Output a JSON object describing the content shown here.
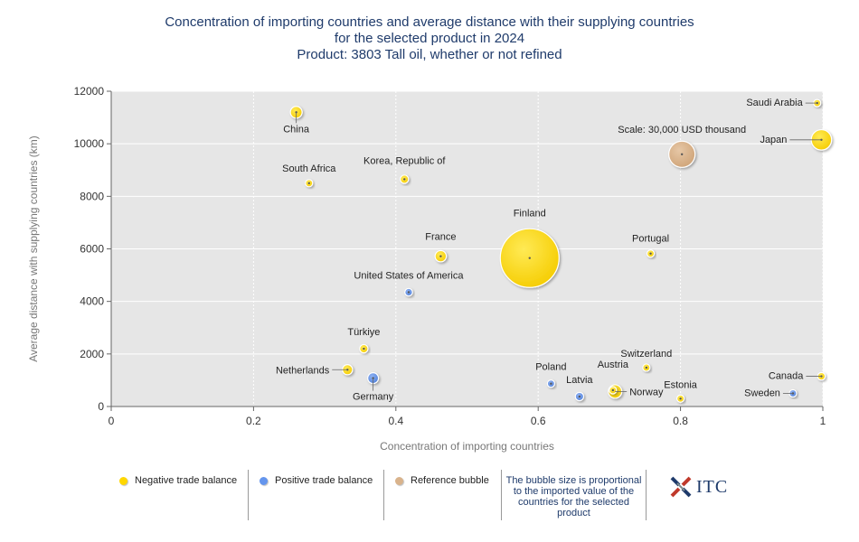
{
  "title": {
    "line1": "Concentration of importing countries and average distance with their supplying countries",
    "line2": "for the selected product in 2024",
    "line3": "Product: 3803 Tall oil, whether or not refined"
  },
  "chart_data": {
    "type": "scatter",
    "xlabel": "Concentration of importing countries",
    "ylabel": "Average distance with supplying countries (km)",
    "xlim": [
      0,
      1
    ],
    "ylim": [
      0,
      12000
    ],
    "x_ticks": [
      "0",
      "0.2",
      "0.4",
      "0.6",
      "0.8",
      "1"
    ],
    "y_ticks": [
      "0",
      "2000",
      "4000",
      "6000",
      "8000",
      "10000",
      "12000"
    ],
    "grid": true,
    "colors": {
      "negative": "#ffd700",
      "positive": "#6495ed",
      "reference": "#d9b38c",
      "plot_bg": "#e6e6e6"
    },
    "points": [
      {
        "label": "China",
        "x": 0.26,
        "y": 11200,
        "size": 6000,
        "balance": "negative"
      },
      {
        "label": "South Africa",
        "x": 0.278,
        "y": 8500,
        "size": 1000,
        "balance": "negative"
      },
      {
        "label": "Korea, Republic of",
        "x": 0.412,
        "y": 8650,
        "size": 3000,
        "balance": "negative"
      },
      {
        "label": "France",
        "x": 0.463,
        "y": 5720,
        "size": 5500,
        "balance": "negative"
      },
      {
        "label": "Finland",
        "x": 0.588,
        "y": 5650,
        "size": 150000,
        "balance": "negative"
      },
      {
        "label": "Portugal",
        "x": 0.758,
        "y": 5820,
        "size": 1000,
        "balance": "negative"
      },
      {
        "label": "Saudi Arabia",
        "x": 0.992,
        "y": 11550,
        "size": 700,
        "balance": "negative"
      },
      {
        "label": "Japan",
        "x": 0.998,
        "y": 10150,
        "size": 18000,
        "balance": "negative"
      },
      {
        "label": "Scale: 30,000 USD thousand",
        "x": 0.802,
        "y": 9600,
        "size": 30000,
        "balance": "reference"
      },
      {
        "label": "United States of America",
        "x": 0.418,
        "y": 4350,
        "size": 2500,
        "balance": "positive"
      },
      {
        "label": "Türkiye",
        "x": 0.355,
        "y": 2200,
        "size": 3000,
        "balance": "negative"
      },
      {
        "label": "Netherlands",
        "x": 0.332,
        "y": 1400,
        "size": 4500,
        "balance": "negative"
      },
      {
        "label": "Germany",
        "x": 0.368,
        "y": 1080,
        "size": 5000,
        "balance": "positive"
      },
      {
        "label": "Poland",
        "x": 0.618,
        "y": 870,
        "size": 1500,
        "balance": "positive"
      },
      {
        "label": "Latvia",
        "x": 0.658,
        "y": 380,
        "size": 3000,
        "balance": "positive"
      },
      {
        "label": "Austria",
        "x": 0.705,
        "y": 620,
        "size": 700,
        "balance": "negative"
      },
      {
        "label": "Norway",
        "x": 0.708,
        "y": 570,
        "size": 8000,
        "balance": "negative"
      },
      {
        "label": "Switzerland",
        "x": 0.752,
        "y": 1480,
        "size": 900,
        "balance": "negative"
      },
      {
        "label": "Estonia",
        "x": 0.8,
        "y": 300,
        "size": 1500,
        "balance": "negative"
      },
      {
        "label": "Canada",
        "x": 0.998,
        "y": 1150,
        "size": 2500,
        "balance": "negative"
      },
      {
        "label": "Sweden",
        "x": 0.958,
        "y": 500,
        "size": 900,
        "balance": "positive"
      }
    ]
  },
  "legend": {
    "negative": "Negative trade balance",
    "positive": "Positive trade balance",
    "reference": "Reference bubble",
    "note": "The bubble size is proportional to the imported value of the countries for the selected product"
  },
  "logo": {
    "text": "ITC"
  }
}
